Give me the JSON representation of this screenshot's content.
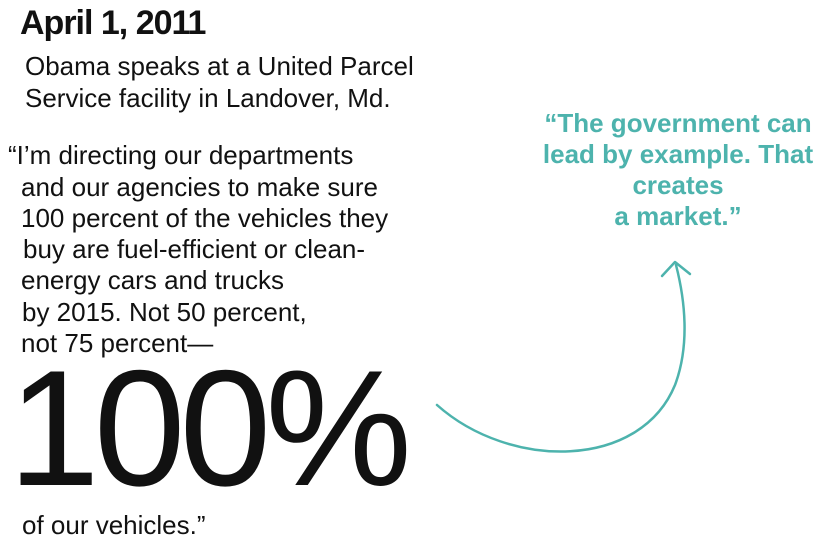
{
  "date": "April 1, 2011",
  "caption": {
    "lines": [
      "Obama speaks at a United Parcel",
      "Service facility in Landover, Md."
    ]
  },
  "quote": {
    "lines": [
      "“I’m directing our departments",
      "and our agencies to make sure",
      "100 percent of the vehicles they",
      "buy are fuel-efficient or clean-",
      "energy cars and trucks",
      "by 2015. Not 50 percent,",
      "not 75 percent—"
    ],
    "big": "100%",
    "tail": "of our vehicles.”"
  },
  "pull_quote": {
    "lines": [
      "“The government can",
      "lead by example. That",
      "creates",
      "a market.”"
    ]
  },
  "colors": {
    "accent": "#4db3ad",
    "text": "#111111"
  }
}
